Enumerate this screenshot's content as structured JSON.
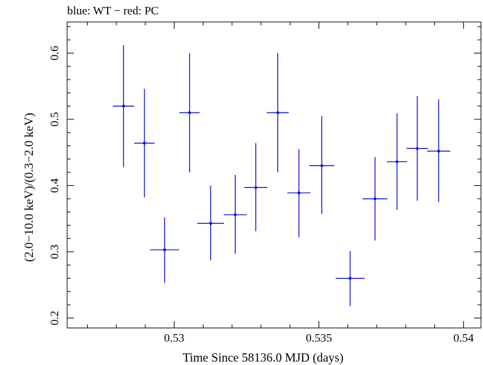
{
  "chart_data": {
    "type": "scatter",
    "title": "blue: WT − red: PC",
    "xlabel": "Time Since 58136.0 MJD (days)",
    "ylabel": "(2.0−10.0 keV)/(0.3−2.0 keV)",
    "xlim": [
      0.5263,
      0.5406
    ],
    "ylim": [
      0.185,
      0.647
    ],
    "x_ticks": [
      0.53,
      0.535,
      0.54
    ],
    "x_tick_labels": [
      "0.53",
      "0.535",
      "0.54"
    ],
    "y_ticks": [
      0.2,
      0.3,
      0.4,
      0.5,
      0.6
    ],
    "y_tick_labels": [
      "0.2",
      "0.3",
      "0.4",
      "0.5",
      "0.6"
    ],
    "grid": false,
    "series": [
      {
        "name": "WT",
        "color": "#0000dd",
        "points": [
          {
            "x": 0.52825,
            "y": 0.52,
            "xerr": 0.00037,
            "ylo": 0.428,
            "yhi": 0.612
          },
          {
            "x": 0.52897,
            "y": 0.464,
            "xerr": 0.00035,
            "ylo": 0.382,
            "yhi": 0.546
          },
          {
            "x": 0.52967,
            "y": 0.303,
            "xerr": 0.0005,
            "ylo": 0.253,
            "yhi": 0.352
          },
          {
            "x": 0.53053,
            "y": 0.51,
            "xerr": 0.00035,
            "ylo": 0.42,
            "yhi": 0.6
          },
          {
            "x": 0.53126,
            "y": 0.343,
            "xerr": 0.00046,
            "ylo": 0.287,
            "yhi": 0.4
          },
          {
            "x": 0.53211,
            "y": 0.356,
            "xerr": 0.0004,
            "ylo": 0.297,
            "yhi": 0.416
          },
          {
            "x": 0.53282,
            "y": 0.397,
            "xerr": 0.0004,
            "ylo": 0.331,
            "yhi": 0.464
          },
          {
            "x": 0.53358,
            "y": 0.51,
            "xerr": 0.00038,
            "ylo": 0.42,
            "yhi": 0.6
          },
          {
            "x": 0.53431,
            "y": 0.389,
            "xerr": 0.0004,
            "ylo": 0.322,
            "yhi": 0.455
          },
          {
            "x": 0.5351,
            "y": 0.43,
            "xerr": 0.00043,
            "ylo": 0.357,
            "yhi": 0.505
          },
          {
            "x": 0.53608,
            "y": 0.26,
            "xerr": 0.0005,
            "ylo": 0.218,
            "yhi": 0.301
          },
          {
            "x": 0.53694,
            "y": 0.38,
            "xerr": 0.00043,
            "ylo": 0.317,
            "yhi": 0.443
          },
          {
            "x": 0.5377,
            "y": 0.436,
            "xerr": 0.00035,
            "ylo": 0.363,
            "yhi": 0.509
          },
          {
            "x": 0.5384,
            "y": 0.456,
            "xerr": 0.00037,
            "ylo": 0.377,
            "yhi": 0.535
          },
          {
            "x": 0.53914,
            "y": 0.452,
            "xerr": 0.0004,
            "ylo": 0.375,
            "yhi": 0.53
          }
        ]
      }
    ]
  }
}
